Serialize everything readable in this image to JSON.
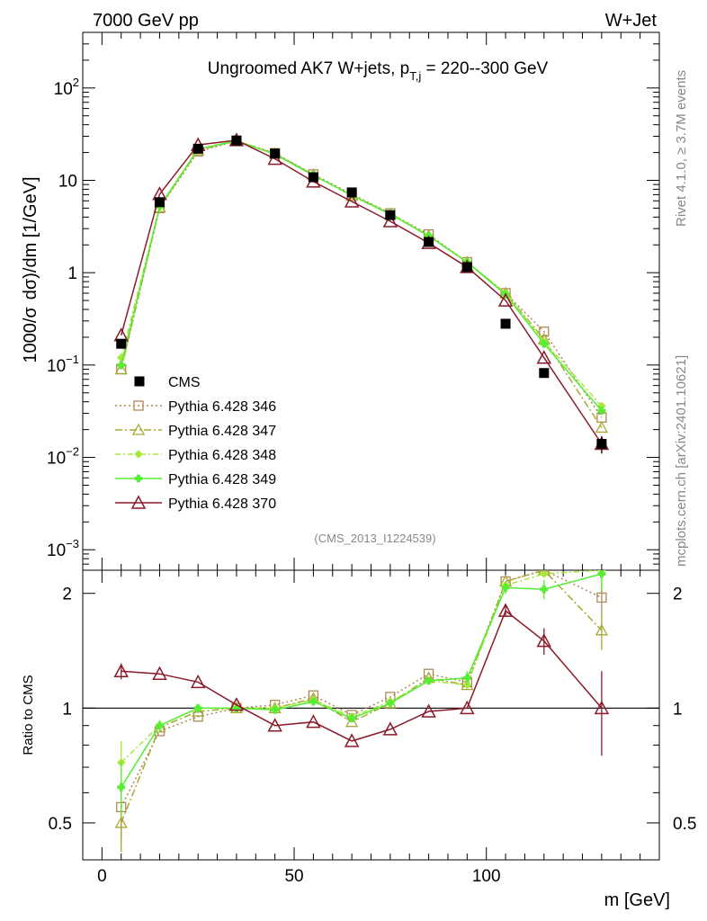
{
  "header": {
    "left": "7000 GeV pp",
    "right": "W+Jet"
  },
  "side": {
    "top": "Rivet 4.1.0, ≥ 3.7M events",
    "bottom": "mcplots.cern.ch [arXiv:2401.10621]"
  },
  "chart_data": [
    {
      "type": "line",
      "title": "Ungroomed AK7 W+jets, p",
      "title_sub": "T,j",
      "title_suffix": " = 220--300 GeV",
      "ylabel_parts": [
        "1000/σ",
        "dσ)/dm [1/GeV]"
      ],
      "yscale": "log",
      "ylim": [
        0.0006,
        400
      ],
      "xlim": [
        -5,
        145
      ],
      "y_tick_labels": [
        {
          "base": "10",
          "exp": "3",
          "neg": true,
          "v": 0.001
        },
        {
          "base": "10",
          "exp": "2",
          "neg": true,
          "v": 0.01
        },
        {
          "base": "10",
          "exp": "1",
          "neg": true,
          "v": 0.1
        },
        {
          "text": "1",
          "v": 1
        },
        {
          "text": "10",
          "v": 10
        },
        {
          "base": "10",
          "exp": "2",
          "neg": false,
          "v": 100
        }
      ],
      "analysis_label": "(CMS_2013_I1224539)",
      "x": [
        5,
        15,
        25,
        35,
        45,
        55,
        65,
        75,
        85,
        95,
        105,
        115,
        130
      ],
      "cms": {
        "name": "CMS",
        "values": [
          0.17,
          5.8,
          22,
          27,
          19.5,
          10.8,
          7.4,
          4.2,
          2.15,
          1.15,
          0.28,
          0.082,
          0.014
        ],
        "err_lo": [
          0,
          0,
          0,
          0,
          0,
          0,
          0,
          0,
          0,
          0,
          0,
          0,
          0.003
        ],
        "err_hi": [
          0,
          0,
          0,
          0,
          0,
          0,
          0,
          0,
          0,
          0,
          0,
          0,
          0.003
        ]
      },
      "series": [
        {
          "name": "Pythia 6.428 346",
          "color": "#b08a55",
          "dash": "2,3",
          "marker": "square",
          "values": [
            0.09,
            5.0,
            20.5,
            26.7,
            19.7,
            11.6,
            7.1,
            4.4,
            2.6,
            1.3,
            0.6,
            0.23,
            0.027
          ]
        },
        {
          "name": "Pythia 6.428 347",
          "color": "#a8a832",
          "dash": "8,3,2,3",
          "marker": "triangle",
          "values": [
            0.09,
            5.1,
            21.2,
            26.8,
            19.4,
            11.5,
            6.8,
            4.3,
            2.5,
            1.3,
            0.6,
            0.19,
            0.021
          ]
        },
        {
          "name": "Pythia 6.428 348",
          "color": "#a8e83a",
          "dash": "6,3,2,3",
          "marker": "diamond",
          "values": [
            0.12,
            5.2,
            21.7,
            26.8,
            19.2,
            11.3,
            6.9,
            4.4,
            2.5,
            1.3,
            0.6,
            0.18,
            0.036
          ]
        },
        {
          "name": "Pythia 6.428 349",
          "color": "#55ee33",
          "dash": "",
          "marker": "cross",
          "values": [
            0.1,
            5.2,
            21.8,
            26.8,
            19.1,
            11.3,
            6.9,
            4.3,
            2.5,
            1.3,
            0.58,
            0.17,
            0.032
          ]
        },
        {
          "name": "Pythia 6.428 370",
          "color": "#8b1a2b",
          "dash": "",
          "marker": "triangle-open",
          "values": [
            0.21,
            7.1,
            24.2,
            27.2,
            17.1,
            9.7,
            5.9,
            3.6,
            2.1,
            1.15,
            0.5,
            0.12,
            0.014
          ]
        }
      ]
    },
    {
      "type": "line",
      "ylabel": "Ratio to CMS",
      "ylim": [
        0.4,
        2.3
      ],
      "xlim": [
        -5,
        145
      ],
      "y_ticks": [
        0.5,
        1,
        2
      ],
      "y_tick_labels": [
        "0.5",
        "1",
        "2"
      ],
      "x_ticks": [
        0,
        50,
        100
      ],
      "x_tick_labels": [
        "0",
        "50",
        "100"
      ],
      "xlabel": "m [GeV]",
      "x": [
        5,
        15,
        25,
        35,
        45,
        55,
        65,
        75,
        85,
        95,
        105,
        115,
        130
      ],
      "series": [
        {
          "name": "Pythia 6.428 346",
          "values": [
            0.55,
            0.87,
            0.95,
            1.0,
            1.02,
            1.08,
            0.96,
            1.07,
            1.23,
            1.17,
            2.15,
            2.3,
            1.95
          ]
        },
        {
          "name": "Pythia 6.428 347",
          "values": [
            0.5,
            0.89,
            0.98,
            1.0,
            1.0,
            1.06,
            0.92,
            1.03,
            1.2,
            1.15,
            2.15,
            2.3,
            1.6
          ]
        },
        {
          "name": "Pythia 6.428 348",
          "values": [
            0.72,
            0.9,
            1.0,
            1.0,
            1.0,
            1.05,
            0.95,
            1.04,
            1.18,
            1.15,
            2.1,
            2.25,
            2.3
          ]
        },
        {
          "name": "Pythia 6.428 349",
          "values": [
            0.62,
            0.9,
            1.0,
            1.0,
            0.99,
            1.04,
            0.94,
            1.03,
            1.18,
            1.2,
            2.07,
            2.05,
            2.25
          ]
        },
        {
          "name": "Pythia 6.428 370",
          "values": [
            1.25,
            1.23,
            1.17,
            1.02,
            0.9,
            0.92,
            0.82,
            0.88,
            0.98,
            1.0,
            1.8,
            1.5,
            1.0
          ]
        }
      ],
      "errors": {
        "Pythia 6.428 346": [
          0.1,
          0,
          0,
          0,
          0,
          0,
          0,
          0,
          0,
          0,
          0,
          0,
          0.18
        ],
        "Pythia 6.428 347": [
          0.08,
          0,
          0,
          0,
          0,
          0,
          0,
          0,
          0,
          0,
          0,
          0,
          0.18
        ],
        "Pythia 6.428 348": [
          0.1,
          0,
          0,
          0,
          0,
          0,
          0,
          0,
          0,
          0,
          0,
          0,
          0.2
        ],
        "Pythia 6.428 349": [
          0.1,
          0.03,
          0,
          0,
          0,
          0,
          0,
          0,
          0,
          0.05,
          0.08,
          0.12,
          0.22
        ],
        "Pythia 6.428 370": [
          0.06,
          0,
          0,
          0,
          0,
          0,
          0,
          0,
          0,
          0,
          0.06,
          0.12,
          0.25
        ]
      }
    }
  ]
}
